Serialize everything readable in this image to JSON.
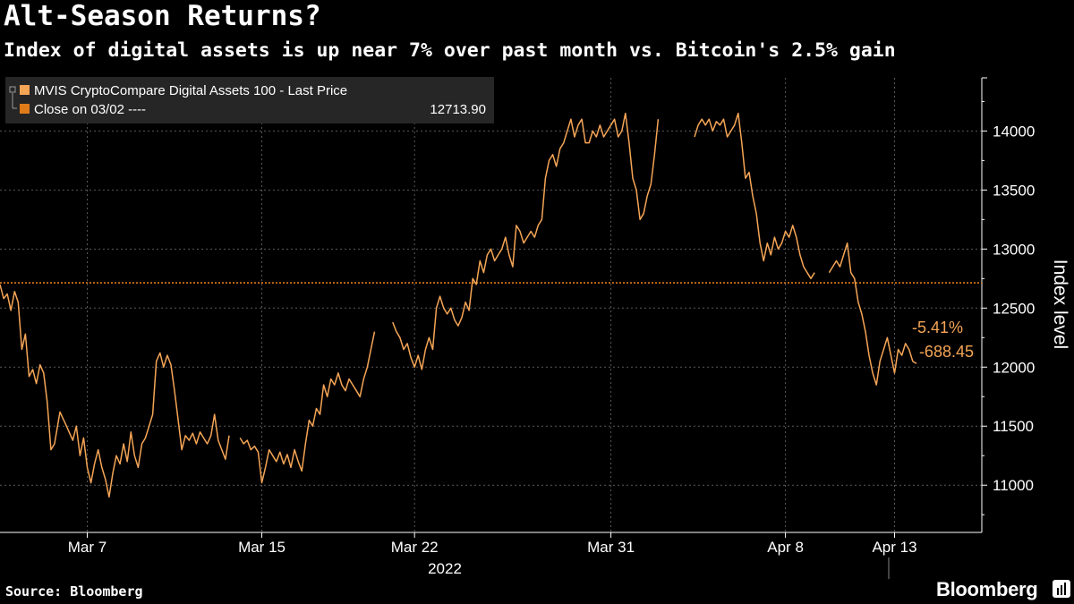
{
  "header": {
    "title": "Alt-Season Returns?",
    "subtitle": "Index of digital assets is up near 7% over past month vs. Bitcoin's 2.5% gain"
  },
  "footer": {
    "source": "Source: Bloomberg",
    "brand": "Bloomberg",
    "brand_icon": "terminal-icon"
  },
  "colors": {
    "background": "#000000",
    "series": "#f5a556",
    "reference": "#e07b1a",
    "grid": "#5a5a5a",
    "text": "#ffffff"
  },
  "legend": {
    "series_label": "MVIS CryptoCompare Digital Assets 100 - Last Price",
    "reference_label": "Close on 03/02 ----",
    "reference_value": "12713.90"
  },
  "annotations": {
    "pct_change": "-5.41%",
    "abs_change": "-688.45"
  },
  "chart_data": {
    "type": "line",
    "title": "Alt-Season Returns?",
    "subtitle": "Index of digital assets is up near 7% over past month vs. Bitcoin's 2.5% gain",
    "ylabel": "Index level",
    "xlabel": "2022",
    "ylim": [
      10600,
      14450
    ],
    "xlim": [
      "2022-03-03",
      "2022-04-17"
    ],
    "y_ticks": [
      11000,
      11500,
      12000,
      12500,
      13000,
      13500,
      14000
    ],
    "x_ticks": [
      {
        "date": "2022-03-07",
        "label": "Mar 7"
      },
      {
        "date": "2022-03-15",
        "label": "Mar 15"
      },
      {
        "date": "2022-03-22",
        "label": "Mar 22"
      },
      {
        "date": "2022-03-31",
        "label": "Mar 31"
      },
      {
        "date": "2022-04-08",
        "label": "Apr 8"
      },
      {
        "date": "2022-04-13",
        "label": "Apr 13"
      }
    ],
    "x_year_label": "2022",
    "grid": true,
    "legend_position": "top-left",
    "reference_line": {
      "name": "Close on 03/02",
      "value": 12713.9
    },
    "series": [
      {
        "name": "MVIS CryptoCompare Digital Assets 100 - Last Price",
        "points": [
          [
            "2022-03-03 00:00",
            12700
          ],
          [
            "2022-03-03 04:00",
            12580
          ],
          [
            "2022-03-03 08:00",
            12620
          ],
          [
            "2022-03-03 12:00",
            12480
          ],
          [
            "2022-03-03 16:00",
            12640
          ],
          [
            "2022-03-03 20:00",
            12550
          ],
          [
            "2022-03-04 00:00",
            12150
          ],
          [
            "2022-03-04 04:00",
            12280
          ],
          [
            "2022-03-04 08:00",
            11920
          ],
          [
            "2022-03-04 12:00",
            11980
          ],
          [
            "2022-03-04 16:00",
            11860
          ],
          [
            "2022-03-04 20:00",
            12020
          ],
          [
            "2022-03-05 00:00",
            11950
          ],
          [
            "2022-03-05 04:00",
            11700
          ],
          [
            "2022-03-05 08:00",
            11300
          ],
          [
            "2022-03-05 12:00",
            11350
          ],
          [
            "2022-03-05 18:00",
            11620
          ],
          [
            "2022-03-06 00:00",
            11520
          ],
          [
            "2022-03-06 04:00",
            11450
          ],
          [
            "2022-03-06 08:00",
            11380
          ],
          [
            "2022-03-06 12:00",
            11500
          ],
          [
            "2022-03-06 16:00",
            11250
          ],
          [
            "2022-03-06 20:00",
            11400
          ],
          [
            "2022-03-07 00:00",
            11150
          ],
          [
            "2022-03-07 04:00",
            11020
          ],
          [
            "2022-03-07 08:00",
            11180
          ],
          [
            "2022-03-07 12:00",
            11300
          ],
          [
            "2022-03-07 16:00",
            11150
          ],
          [
            "2022-03-07 20:00",
            11050
          ],
          [
            "2022-03-08 00:00",
            10900
          ],
          [
            "2022-03-08 04:00",
            11100
          ],
          [
            "2022-03-08 08:00",
            11250
          ],
          [
            "2022-03-08 12:00",
            11180
          ],
          [
            "2022-03-08 16:00",
            11350
          ],
          [
            "2022-03-08 20:00",
            11200
          ],
          [
            "2022-03-09 00:00",
            11450
          ],
          [
            "2022-03-09 04:00",
            11250
          ],
          [
            "2022-03-09 08:00",
            11150
          ],
          [
            "2022-03-09 12:00",
            11350
          ],
          [
            "2022-03-09 16:00",
            11400
          ],
          [
            "2022-03-10 00:00",
            11600
          ],
          [
            "2022-03-10 04:00",
            12050
          ],
          [
            "2022-03-10 08:00",
            12120
          ],
          [
            "2022-03-10 12:00",
            12000
          ],
          [
            "2022-03-10 16:00",
            12100
          ],
          [
            "2022-03-10 20:00",
            12020
          ],
          [
            "2022-03-11 00:00",
            11800
          ],
          [
            "2022-03-11 04:00",
            11550
          ],
          [
            "2022-03-11 08:00",
            11300
          ],
          [
            "2022-03-11 12:00",
            11420
          ],
          [
            "2022-03-11 16:00",
            11380
          ],
          [
            "2022-03-11 20:00",
            11440
          ],
          [
            "2022-03-12 00:00",
            11350
          ],
          [
            "2022-03-12 04:00",
            11450
          ],
          [
            "2022-03-12 08:00",
            11400
          ],
          [
            "2022-03-12 12:00",
            11350
          ],
          [
            "2022-03-12 16:00",
            11420
          ],
          [
            "2022-03-12 20:00",
            11600
          ],
          [
            "2022-03-13 00:00",
            11380
          ],
          [
            "2022-03-13 04:00",
            11300
          ],
          [
            "2022-03-13 08:00",
            11220
          ],
          [
            "2022-03-13 12:00",
            11420
          ],
          [
            "2022-03-14 00:00",
            11400
          ],
          [
            "2022-03-14 04:00",
            11350
          ],
          [
            "2022-03-14 08:00",
            11380
          ],
          [
            "2022-03-14 12:00",
            11300
          ],
          [
            "2022-03-14 16:00",
            11330
          ],
          [
            "2022-03-14 20:00",
            11280
          ],
          [
            "2022-03-15 00:00",
            11020
          ],
          [
            "2022-03-15 04:00",
            11150
          ],
          [
            "2022-03-15 08:00",
            11300
          ],
          [
            "2022-03-15 12:00",
            11250
          ],
          [
            "2022-03-15 16:00",
            11200
          ],
          [
            "2022-03-15 20:00",
            11280
          ],
          [
            "2022-03-16 00:00",
            11180
          ],
          [
            "2022-03-16 04:00",
            11260
          ],
          [
            "2022-03-16 08:00",
            11150
          ],
          [
            "2022-03-16 12:00",
            11300
          ],
          [
            "2022-03-16 16:00",
            11200
          ],
          [
            "2022-03-16 20:00",
            11120
          ],
          [
            "2022-03-17 00:00",
            11350
          ],
          [
            "2022-03-17 04:00",
            11550
          ],
          [
            "2022-03-17 08:00",
            11500
          ],
          [
            "2022-03-17 12:00",
            11650
          ],
          [
            "2022-03-17 16:00",
            11600
          ],
          [
            "2022-03-17 20:00",
            11850
          ],
          [
            "2022-03-18 00:00",
            11750
          ],
          [
            "2022-03-18 04:00",
            11900
          ],
          [
            "2022-03-18 08:00",
            11850
          ],
          [
            "2022-03-18 12:00",
            11950
          ],
          [
            "2022-03-18 16:00",
            11850
          ],
          [
            "2022-03-18 20:00",
            11800
          ],
          [
            "2022-03-19 00:00",
            11900
          ],
          [
            "2022-03-19 04:00",
            11850
          ],
          [
            "2022-03-19 08:00",
            11800
          ],
          [
            "2022-03-19 12:00",
            11750
          ],
          [
            "2022-03-19 16:00",
            11900
          ],
          [
            "2022-03-19 20:00",
            12000
          ],
          [
            "2022-03-20 00:00",
            12150
          ],
          [
            "2022-03-20 04:00",
            12300
          ],
          [
            "2022-03-21 00:00",
            12380
          ],
          [
            "2022-03-21 04:00",
            12300
          ],
          [
            "2022-03-21 08:00",
            12250
          ],
          [
            "2022-03-21 12:00",
            12150
          ],
          [
            "2022-03-21 16:00",
            12200
          ],
          [
            "2022-03-21 20:00",
            12080
          ],
          [
            "2022-03-22 00:00",
            12000
          ],
          [
            "2022-03-22 04:00",
            12100
          ],
          [
            "2022-03-22 08:00",
            11980
          ],
          [
            "2022-03-22 12:00",
            12150
          ],
          [
            "2022-03-22 16:00",
            12250
          ],
          [
            "2022-03-22 20:00",
            12150
          ],
          [
            "2022-03-23 00:00",
            12500
          ],
          [
            "2022-03-23 04:00",
            12600
          ],
          [
            "2022-03-23 08:00",
            12500
          ],
          [
            "2022-03-23 12:00",
            12450
          ],
          [
            "2022-03-23 16:00",
            12500
          ],
          [
            "2022-03-23 20:00",
            12400
          ],
          [
            "2022-03-24 00:00",
            12350
          ],
          [
            "2022-03-24 04:00",
            12420
          ],
          [
            "2022-03-24 08:00",
            12550
          ],
          [
            "2022-03-24 12:00",
            12480
          ],
          [
            "2022-03-24 16:00",
            12750
          ],
          [
            "2022-03-24 20:00",
            12700
          ],
          [
            "2022-03-25 00:00",
            12900
          ],
          [
            "2022-03-25 04:00",
            12800
          ],
          [
            "2022-03-25 08:00",
            12950
          ],
          [
            "2022-03-25 12:00",
            13000
          ],
          [
            "2022-03-25 16:00",
            12900
          ],
          [
            "2022-03-25 20:00",
            12950
          ],
          [
            "2022-03-26 00:00",
            13000
          ],
          [
            "2022-03-26 04:00",
            13100
          ],
          [
            "2022-03-26 08:00",
            12950
          ],
          [
            "2022-03-26 12:00",
            12850
          ],
          [
            "2022-03-26 16:00",
            13200
          ],
          [
            "2022-03-26 20:00",
            13150
          ],
          [
            "2022-03-27 00:00",
            13050
          ],
          [
            "2022-03-27 04:00",
            13100
          ],
          [
            "2022-03-27 08:00",
            13150
          ],
          [
            "2022-03-27 12:00",
            13100
          ],
          [
            "2022-03-27 16:00",
            13200
          ],
          [
            "2022-03-27 20:00",
            13250
          ],
          [
            "2022-03-28 00:00",
            13600
          ],
          [
            "2022-03-28 04:00",
            13750
          ],
          [
            "2022-03-28 08:00",
            13800
          ],
          [
            "2022-03-28 12:00",
            13700
          ],
          [
            "2022-03-28 16:00",
            13850
          ],
          [
            "2022-03-28 20:00",
            13900
          ],
          [
            "2022-03-29 00:00",
            14000
          ],
          [
            "2022-03-29 04:00",
            14100
          ],
          [
            "2022-03-29 08:00",
            13950
          ],
          [
            "2022-03-29 12:00",
            14050
          ],
          [
            "2022-03-29 16:00",
            14100
          ],
          [
            "2022-03-29 20:00",
            13900
          ],
          [
            "2022-03-30 00:00",
            13900
          ],
          [
            "2022-03-30 04:00",
            14000
          ],
          [
            "2022-03-30 08:00",
            13950
          ],
          [
            "2022-03-30 12:00",
            14050
          ],
          [
            "2022-03-30 16:00",
            13950
          ],
          [
            "2022-03-30 20:00",
            14000
          ],
          [
            "2022-03-31 00:00",
            14050
          ],
          [
            "2022-03-31 04:00",
            14100
          ],
          [
            "2022-03-31 08:00",
            13950
          ],
          [
            "2022-03-31 12:00",
            14000
          ],
          [
            "2022-03-31 16:00",
            14150
          ],
          [
            "2022-03-31 20:00",
            13900
          ],
          [
            "2022-04-01 00:00",
            13600
          ],
          [
            "2022-04-01 04:00",
            13500
          ],
          [
            "2022-04-01 08:00",
            13250
          ],
          [
            "2022-04-01 12:00",
            13300
          ],
          [
            "2022-04-01 16:00",
            13450
          ],
          [
            "2022-04-01 20:00",
            13550
          ],
          [
            "2022-04-02 00:00",
            13800
          ],
          [
            "2022-04-02 04:00",
            14100
          ],
          [
            "2022-04-03 20:00",
            13950
          ],
          [
            "2022-04-04 00:00",
            14050
          ],
          [
            "2022-04-04 04:00",
            14100
          ],
          [
            "2022-04-04 08:00",
            14050
          ],
          [
            "2022-04-04 12:00",
            14100
          ],
          [
            "2022-04-04 16:00",
            14000
          ],
          [
            "2022-04-04 20:00",
            14080
          ],
          [
            "2022-04-05 00:00",
            14050
          ],
          [
            "2022-04-05 04:00",
            14100
          ],
          [
            "2022-04-05 08:00",
            13950
          ],
          [
            "2022-04-05 12:00",
            14000
          ],
          [
            "2022-04-05 16:00",
            14050
          ],
          [
            "2022-04-05 20:00",
            14150
          ],
          [
            "2022-04-06 00:00",
            13900
          ],
          [
            "2022-04-06 04:00",
            13600
          ],
          [
            "2022-04-06 08:00",
            13650
          ],
          [
            "2022-04-06 12:00",
            13450
          ],
          [
            "2022-04-06 16:00",
            13300
          ],
          [
            "2022-04-06 20:00",
            13050
          ],
          [
            "2022-04-07 00:00",
            12900
          ],
          [
            "2022-04-07 04:00",
            13050
          ],
          [
            "2022-04-07 08:00",
            12950
          ],
          [
            "2022-04-07 12:00",
            13100
          ],
          [
            "2022-04-07 16:00",
            13000
          ],
          [
            "2022-04-07 20:00",
            13050
          ],
          [
            "2022-04-08 00:00",
            13150
          ],
          [
            "2022-04-08 04:00",
            13100
          ],
          [
            "2022-04-08 08:00",
            13200
          ],
          [
            "2022-04-08 12:00",
            13100
          ],
          [
            "2022-04-08 16:00",
            12950
          ],
          [
            "2022-04-08 20:00",
            12850
          ],
          [
            "2022-04-09 04:00",
            12750
          ],
          [
            "2022-04-09 08:00",
            12800
          ],
          [
            "2022-04-10 00:00",
            12800
          ],
          [
            "2022-04-10 04:00",
            12850
          ],
          [
            "2022-04-10 08:00",
            12900
          ],
          [
            "2022-04-10 12:00",
            12850
          ],
          [
            "2022-04-10 16:00",
            12950
          ],
          [
            "2022-04-10 20:00",
            13050
          ],
          [
            "2022-04-11 00:00",
            12800
          ],
          [
            "2022-04-11 04:00",
            12750
          ],
          [
            "2022-04-11 08:00",
            12550
          ],
          [
            "2022-04-11 12:00",
            12450
          ],
          [
            "2022-04-11 16:00",
            12300
          ],
          [
            "2022-04-11 20:00",
            12100
          ],
          [
            "2022-04-12 00:00",
            11950
          ],
          [
            "2022-04-12 04:00",
            11850
          ],
          [
            "2022-04-12 08:00",
            12050
          ],
          [
            "2022-04-12 12:00",
            12150
          ],
          [
            "2022-04-12 16:00",
            12250
          ],
          [
            "2022-04-12 20:00",
            12100
          ],
          [
            "2022-04-13 00:00",
            11950
          ],
          [
            "2022-04-13 04:00",
            12150
          ],
          [
            "2022-04-13 08:00",
            12100
          ],
          [
            "2022-04-13 12:00",
            12200
          ],
          [
            "2022-04-13 16:00",
            12150
          ],
          [
            "2022-04-13 20:00",
            12050
          ],
          [
            "2022-04-14 00:00",
            12030
          ]
        ]
      }
    ]
  }
}
